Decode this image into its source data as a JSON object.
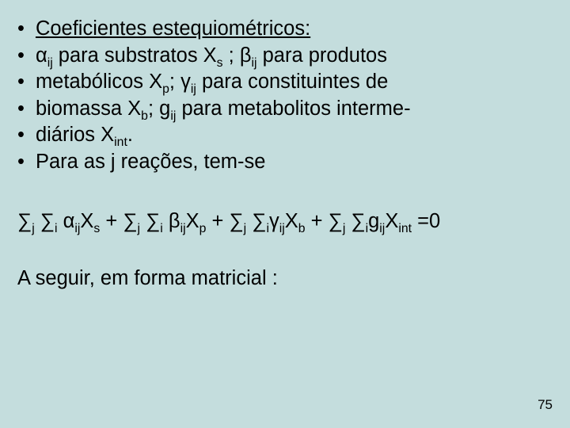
{
  "lines": {
    "l1": "Coeficientes estequiométricos:",
    "l2_a": "α",
    "l2_sub1": "ij",
    "l2_b": "  para substratos X",
    "l2_sub2": "s",
    "l2_c": " ; β",
    "l2_sub3": "ij",
    "l2_d": " para produtos",
    "l3_a": "metabólicos X",
    "l3_sub1": "p",
    "l3_b": "; γ",
    "l3_sub2": "ij",
    "l3_c": "  para constituintes de",
    "l4_a": "biomassa X",
    "l4_sub1": "b",
    "l4_b": "; g",
    "l4_sub2": "ij",
    "l4_c": " para metabolitos interme-",
    "l5_a": "diários X",
    "l5_sub1": "int",
    "l5_b": ".",
    "l6": "Para as j reações, tem-se"
  },
  "eq": {
    "s1": "∑",
    "sub1": "j",
    "s2": " ∑",
    "sub2": "i",
    "s3": " α",
    "sub3": "ij",
    "s4": "X",
    "sub4": "s",
    "s5": " + ∑",
    "sub5": "j",
    "s6": " ∑",
    "sub6": "i",
    "s7": " β",
    "sub7": "ij",
    "s8": "X",
    "sub8": "p",
    "s9": " + ∑",
    "sub9": "j",
    "s10": " ∑",
    "sub10": "i",
    "s11": "γ",
    "sub11": "ij",
    "s12": "X",
    "sub12": "b",
    "s13": " + ∑",
    "sub13": "j",
    "s14": " ∑",
    "sub14": "i",
    "s15": "g",
    "sub15": "ij",
    "s16": "X",
    "sub16": "int",
    "s17": " =0"
  },
  "followup": "A seguir, em forma matricial :",
  "pagenum": "75",
  "bullet": "•"
}
